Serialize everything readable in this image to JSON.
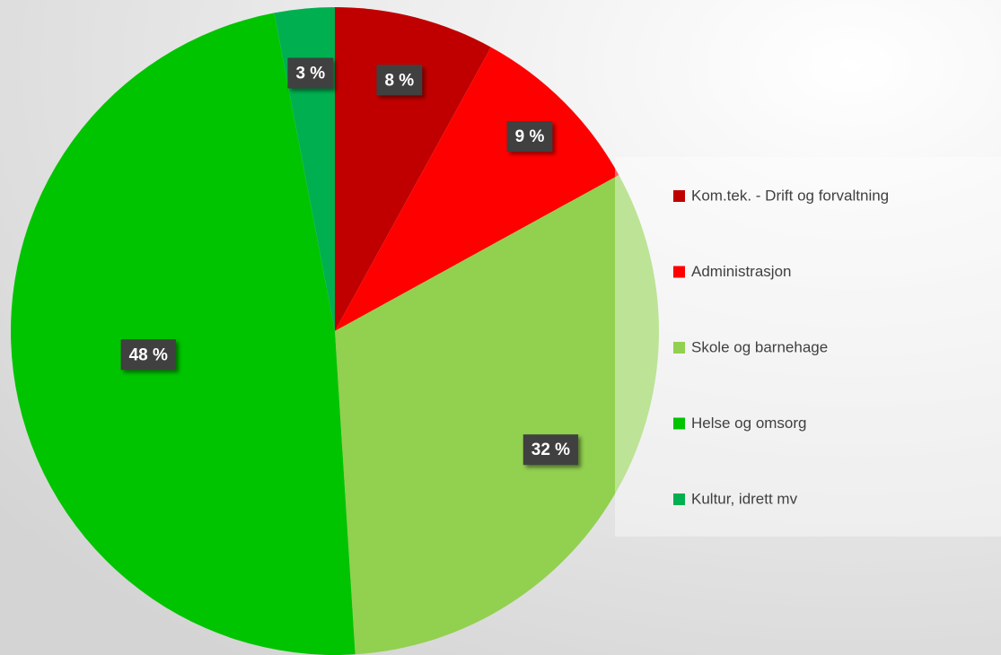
{
  "chart_data": {
    "type": "pie",
    "categories": [
      "Kom.tek. - Drift og forvaltning",
      "Administrasjon",
      "Skole og barnehage",
      "Helse og omsorg",
      "Kultur, idrett mv"
    ],
    "values": [
      8,
      9,
      32,
      48,
      3
    ],
    "value_labels": [
      "8 %",
      "9 %",
      "32 %",
      "48 %",
      "3 %"
    ],
    "colors": [
      "#c00000",
      "#ff0000",
      "#92d050",
      "#00c400",
      "#00b050"
    ],
    "legend": "right"
  }
}
